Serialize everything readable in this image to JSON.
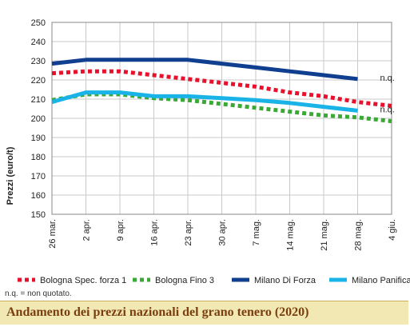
{
  "chart_data": {
    "type": "line",
    "title": "Andamento dei prezzi nazionali del grano tenero (2020)",
    "ylabel": "Prezzi (euro/t)",
    "xlabel": "",
    "ylim": [
      150,
      250
    ],
    "yticks": [
      150,
      160,
      170,
      180,
      190,
      200,
      210,
      220,
      230,
      240,
      250
    ],
    "categories": [
      "26 mar.",
      "2 apr.",
      "9 apr.",
      "16 apr.",
      "23 apr.",
      "30 apr.",
      "7 mag.",
      "14 mag.",
      "21 mag.",
      "28 mag.",
      "4 giu."
    ],
    "grid": true,
    "legend_position": "bottom",
    "series": [
      {
        "name": "Bologna Spec. forza 1",
        "color": "#e8112d",
        "style": "dotted",
        "values": [
          223.5,
          224.5,
          224.5,
          222.5,
          220.5,
          218.5,
          216.5,
          213.5,
          211.5,
          208.5,
          206.5
        ]
      },
      {
        "name": "Bologna Fino 3",
        "color": "#3aa935",
        "style": "dotted",
        "values": [
          209.5,
          212.5,
          212.5,
          210.5,
          209.5,
          207.5,
          205.5,
          203.5,
          201.5,
          200.5,
          198.5
        ]
      },
      {
        "name": "Milano Di Forza",
        "color": "#103f8f",
        "style": "solid",
        "values": [
          228.5,
          230.5,
          230.5,
          230.5,
          230.5,
          228.5,
          226.5,
          224.5,
          222.5,
          220.5,
          null
        ]
      },
      {
        "name": "Milano Panificabile",
        "color": "#1ab3e8",
        "style": "solid",
        "values": [
          208.5,
          213.5,
          213.5,
          211.5,
          211.5,
          210.5,
          209.5,
          208.0,
          206.0,
          204.0,
          null
        ]
      }
    ],
    "annotations": [
      {
        "text": "n.q.",
        "series": "Milano Di Forza"
      },
      {
        "text": "n.q.",
        "series": "Milano Panificabile"
      }
    ]
  },
  "note": "n.q. = non quotato.",
  "caption": "Andamento dei prezzi nazionali del grano tenero (2020)"
}
